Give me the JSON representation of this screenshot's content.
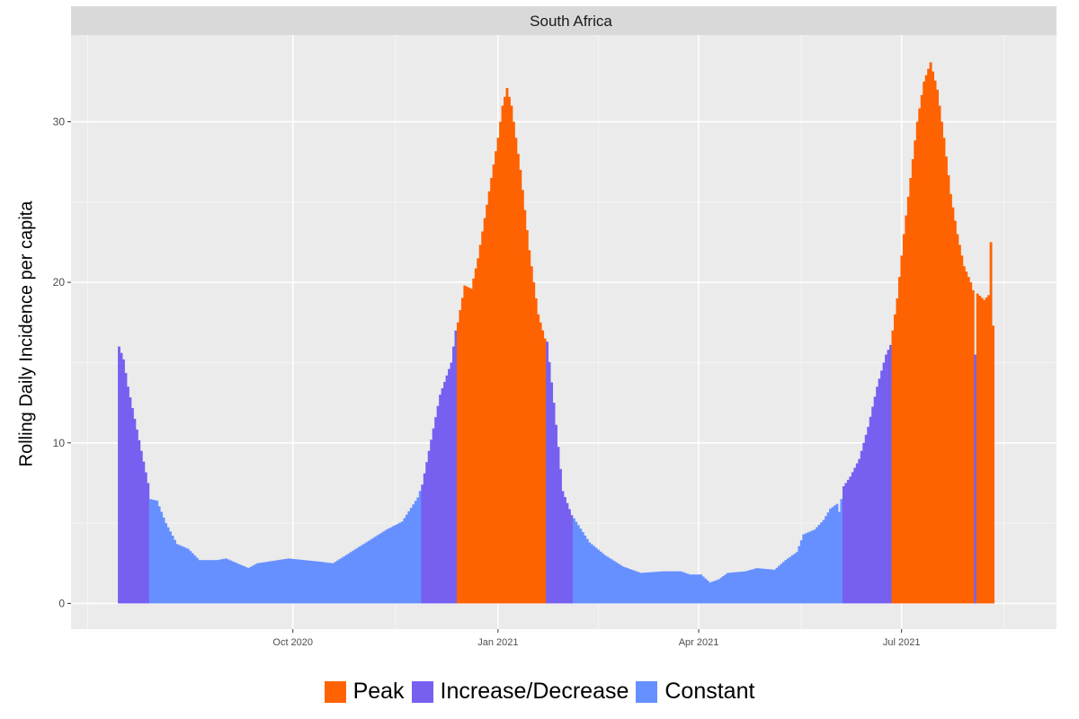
{
  "chart_data": {
    "type": "bar",
    "panel_title": "South Africa",
    "ylabel": "Rolling Daily Incidence per capita",
    "xlabel": "",
    "ylim": [
      -1.6,
      35.4
    ],
    "y_ticks": [
      0,
      10,
      20,
      30
    ],
    "x_start": "2020-07-01",
    "x_range_days": [
      -7.5,
      434.5
    ],
    "x_ticks": [
      {
        "day": 92,
        "label": "Oct 2020"
      },
      {
        "day": 184,
        "label": "Jan 2021"
      },
      {
        "day": 274,
        "label": "Apr 2021"
      },
      {
        "day": 365,
        "label": "Jul 2021"
      }
    ],
    "minor_ticks_days": [
      0,
      138,
      229,
      320,
      411
    ],
    "legend": [
      {
        "label": "Peak",
        "color": "#FF6200"
      },
      {
        "label": "Increase/Decrease",
        "color": "#7760F0"
      },
      {
        "label": "Constant",
        "color": "#6690FF"
      }
    ],
    "category_colors": {
      "P": "#FF6200",
      "I": "#7760F0",
      "C": "#6690FF"
    },
    "series_keyframes": [
      [
        14,
        16.0,
        "I"
      ],
      [
        16,
        15.2,
        "I"
      ],
      [
        18,
        13.5,
        "I"
      ],
      [
        21,
        11.5,
        "I"
      ],
      [
        24,
        9.5,
        "I"
      ],
      [
        27,
        7.5,
        "I"
      ],
      [
        28,
        6.5,
        "C"
      ],
      [
        31,
        6.4,
        "C"
      ],
      [
        35,
        5.0,
        "C"
      ],
      [
        40,
        3.7,
        "C"
      ],
      [
        45,
        3.4,
        "C"
      ],
      [
        50,
        2.7,
        "C"
      ],
      [
        58,
        2.7,
        "C"
      ],
      [
        62,
        2.8,
        "C"
      ],
      [
        67,
        2.5,
        "C"
      ],
      [
        72,
        2.2,
        "C"
      ],
      [
        76,
        2.5,
        "C"
      ],
      [
        90,
        2.8,
        "C"
      ],
      [
        104,
        2.6,
        "C"
      ],
      [
        110,
        2.5,
        "C"
      ],
      [
        118,
        3.2,
        "C"
      ],
      [
        126,
        3.9,
        "C"
      ],
      [
        134,
        4.6,
        "C"
      ],
      [
        141,
        5.1,
        "C"
      ],
      [
        148,
        6.6,
        "C"
      ],
      [
        150,
        7.4,
        "I"
      ],
      [
        154,
        10.2,
        "I"
      ],
      [
        158,
        13.0,
        "I"
      ],
      [
        163,
        15.0,
        "I"
      ],
      [
        165,
        17.0,
        "I"
      ],
      [
        166,
        17.5,
        "P"
      ],
      [
        169,
        19.8,
        "P"
      ],
      [
        172,
        19.6,
        "P"
      ],
      [
        175,
        21.5,
        "P"
      ],
      [
        178,
        24.0,
        "P"
      ],
      [
        181,
        26.5,
        "P"
      ],
      [
        184,
        29.0,
        "P"
      ],
      [
        186,
        31.0,
        "P"
      ],
      [
        188,
        32.1,
        "P"
      ],
      [
        190,
        31.0,
        "P"
      ],
      [
        194,
        27.0,
        "P"
      ],
      [
        198,
        22.0,
        "P"
      ],
      [
        202,
        18.0,
        "P"
      ],
      [
        205,
        16.5,
        "P"
      ],
      [
        206,
        16.3,
        "I"
      ],
      [
        209,
        12.5,
        "I"
      ],
      [
        213,
        7.0,
        "I"
      ],
      [
        217,
        5.5,
        "I"
      ],
      [
        218,
        5.3,
        "C"
      ],
      [
        225,
        3.8,
        "C"
      ],
      [
        232,
        3.0,
        "C"
      ],
      [
        240,
        2.3,
        "C"
      ],
      [
        248,
        1.9,
        "C"
      ],
      [
        258,
        2.0,
        "C"
      ],
      [
        266,
        2.0,
        "C"
      ],
      [
        270,
        1.8,
        "C"
      ],
      [
        275,
        1.8,
        "C"
      ],
      [
        279,
        1.3,
        "C"
      ],
      [
        283,
        1.5,
        "C"
      ],
      [
        287,
        1.9,
        "C"
      ],
      [
        295,
        2.0,
        "C"
      ],
      [
        300,
        2.2,
        "C"
      ],
      [
        308,
        2.1,
        "C"
      ],
      [
        313,
        2.7,
        "C"
      ],
      [
        318,
        3.2,
        "C"
      ],
      [
        321,
        4.3,
        "C"
      ],
      [
        326,
        4.6,
        "C"
      ],
      [
        330,
        5.2,
        "C"
      ],
      [
        333,
        5.9,
        "C"
      ],
      [
        336,
        6.2,
        "C"
      ],
      [
        337,
        5.7,
        "C"
      ],
      [
        339,
        7.3,
        "I"
      ],
      [
        342,
        7.9,
        "I"
      ],
      [
        346,
        9.0,
        "I"
      ],
      [
        350,
        11.0,
        "I"
      ],
      [
        354,
        13.5,
        "I"
      ],
      [
        358,
        15.5,
        "I"
      ],
      [
        360,
        16.1,
        "I"
      ],
      [
        361,
        17.0,
        "P"
      ],
      [
        363,
        19.0,
        "P"
      ],
      [
        366,
        23.0,
        "P"
      ],
      [
        369,
        26.5,
        "P"
      ],
      [
        372,
        30.0,
        "P"
      ],
      [
        375,
        32.5,
        "P"
      ],
      [
        378,
        33.7,
        "P"
      ],
      [
        381,
        32.0,
        "P"
      ],
      [
        384,
        29.0,
        "P"
      ],
      [
        387,
        25.5,
        "P"
      ],
      [
        390,
        23.0,
        "P"
      ],
      [
        393,
        21.0,
        "P"
      ],
      [
        396,
        20.0,
        "P"
      ],
      [
        397,
        19.5,
        "P"
      ],
      [
        398,
        15.5,
        "I"
      ],
      [
        399,
        19.3,
        "P"
      ],
      [
        402,
        18.9,
        "P"
      ],
      [
        404,
        19.2,
        "P"
      ],
      [
        405,
        22.5,
        "P"
      ],
      [
        406,
        17.3,
        "P"
      ]
    ]
  }
}
